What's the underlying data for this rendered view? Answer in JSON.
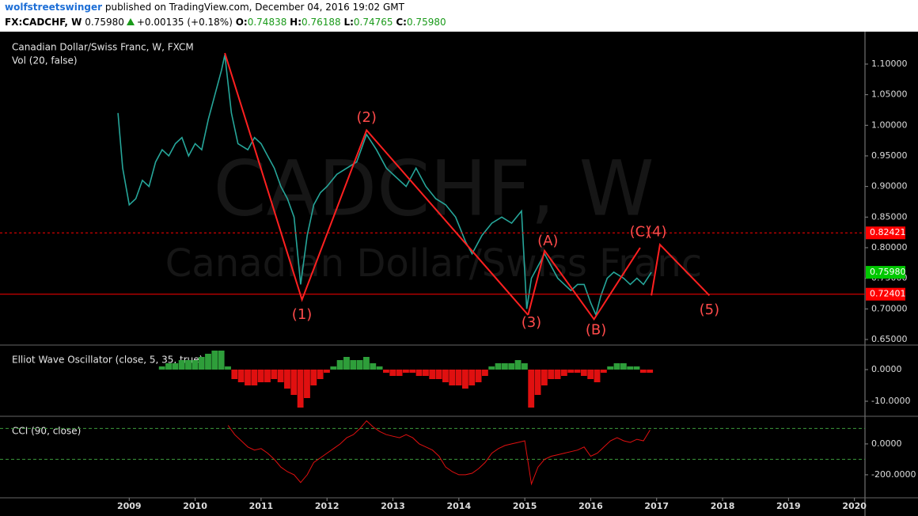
{
  "header": {
    "author": "wolfstreetswinger",
    "published": "published on TradingView.com, December 04, 2016 19:02 GMT",
    "symbol": "FX:CADCHF, W",
    "price": "0.75980",
    "change": "+0.00135 (+0.18%)",
    "ohlc": [
      {
        "label": "O:",
        "value": "0.74838"
      },
      {
        "label": "H:",
        "value": "0.76188"
      },
      {
        "label": "L:",
        "value": "0.74765"
      },
      {
        "label": "C:",
        "value": "0.75980"
      }
    ]
  },
  "chart_data": [
    {
      "type": "line",
      "title": "Canadian Dollar/Swiss Franc, W, FXCM",
      "subtitle": "Vol (20, false)",
      "watermark": [
        "CADCHF, W",
        "Canadian Dollar/Swiss Franc"
      ],
      "xlim": [
        2007.04,
        2020.16
      ],
      "ylim": [
        0.6422,
        1.1504
      ],
      "color": "#26a69a",
      "yticks": [
        {
          "value": 0.65,
          "label": "0.65000"
        },
        {
          "value": 0.7,
          "label": "0.70000"
        },
        {
          "value": 0.75,
          "label": "0.75000"
        },
        {
          "value": 0.8,
          "label": "0.80000"
        },
        {
          "value": 0.85,
          "label": "0.85000"
        },
        {
          "value": 0.9,
          "label": "0.90000"
        },
        {
          "value": 0.95,
          "label": "0.95000"
        },
        {
          "value": 1.0,
          "label": "1.00000"
        },
        {
          "value": 1.05,
          "label": "1.05000"
        },
        {
          "value": 1.1,
          "label": "1.10000"
        }
      ],
      "x": [
        2008.83,
        2008.9,
        2009.0,
        2009.1,
        2009.2,
        2009.3,
        2009.4,
        2009.5,
        2009.6,
        2009.7,
        2009.8,
        2009.9,
        2010.0,
        2010.1,
        2010.2,
        2010.3,
        2010.4,
        2010.45,
        2010.55,
        2010.65,
        2010.8,
        2010.9,
        2011.0,
        2011.1,
        2011.2,
        2011.3,
        2011.4,
        2011.5,
        2011.6,
        2011.7,
        2011.8,
        2011.9,
        2012.0,
        2012.15,
        2012.3,
        2012.45,
        2012.6,
        2012.75,
        2012.9,
        2013.0,
        2013.2,
        2013.35,
        2013.5,
        2013.65,
        2013.8,
        2013.95,
        2014.1,
        2014.2,
        2014.35,
        2014.5,
        2014.65,
        2014.8,
        2014.95,
        2015.03,
        2015.1,
        2015.2,
        2015.3,
        2015.4,
        2015.5,
        2015.6,
        2015.7,
        2015.8,
        2015.9,
        2016.0,
        2016.08,
        2016.15,
        2016.25,
        2016.35,
        2016.5,
        2016.6,
        2016.7,
        2016.8,
        2016.92
      ],
      "values": [
        1.02,
        0.93,
        0.87,
        0.88,
        0.91,
        0.9,
        0.94,
        0.96,
        0.95,
        0.97,
        0.98,
        0.95,
        0.97,
        0.96,
        1.01,
        1.05,
        1.09,
        1.115,
        1.02,
        0.97,
        0.96,
        0.98,
        0.97,
        0.95,
        0.93,
        0.9,
        0.88,
        0.85,
        0.74,
        0.82,
        0.87,
        0.89,
        0.9,
        0.92,
        0.93,
        0.94,
        0.985,
        0.96,
        0.93,
        0.92,
        0.9,
        0.93,
        0.9,
        0.88,
        0.87,
        0.85,
        0.81,
        0.79,
        0.82,
        0.84,
        0.85,
        0.84,
        0.86,
        0.7,
        0.75,
        0.77,
        0.79,
        0.77,
        0.75,
        0.74,
        0.73,
        0.74,
        0.74,
        0.71,
        0.69,
        0.72,
        0.75,
        0.76,
        0.75,
        0.74,
        0.75,
        0.74,
        0.7598
      ],
      "price_lines": [
        {
          "value": 0.72401,
          "label": "0.72401",
          "color": "#ff0000",
          "style": "solid"
        },
        {
          "value": 0.82421,
          "label": "0.82421",
          "color": "#ff0000",
          "style": "dashed"
        },
        {
          "value": 0.7598,
          "label": "0.75980",
          "color": "#00c800",
          "style": "none"
        }
      ],
      "wave_lines": [
        {
          "color": "#ff2020",
          "x": [
            2010.45,
            2011.62,
            2012.6,
            2015.05
          ],
          "values": [
            1.118,
            0.715,
            0.992,
            0.69
          ]
        },
        {
          "color": "#ff2020",
          "x": [
            2015.05,
            2015.3,
            2016.05,
            2016.75
          ],
          "values": [
            0.69,
            0.795,
            0.683,
            0.8
          ]
        },
        {
          "color": "#ff2020",
          "x": [
            2016.92,
            2017.05,
            2017.8
          ],
          "values": [
            0.722,
            0.805,
            0.722
          ]
        }
      ],
      "annotations": [
        {
          "text": "(1)",
          "x": 2011.62,
          "y": 0.69
        },
        {
          "text": "(2)",
          "x": 2012.6,
          "y": 1.012
        },
        {
          "text": "(3)",
          "x": 2015.1,
          "y": 0.677
        },
        {
          "text": "(4)",
          "x": 2017.0,
          "y": 0.825
        },
        {
          "text": "(5)",
          "x": 2017.8,
          "y": 0.698
        },
        {
          "text": "(A)",
          "x": 2015.35,
          "y": 0.81
        },
        {
          "text": "(B)",
          "x": 2016.08,
          "y": 0.665
        },
        {
          "text": "(C)",
          "x": 2016.75,
          "y": 0.825
        }
      ]
    },
    {
      "type": "bar",
      "title": "Elliot Wave Oscillator (close, 5, 35, true)",
      "xlim": [
        2007.04,
        2020.16
      ],
      "ylim": [
        -14.5,
        7.5
      ],
      "yticks": [
        {
          "value": 0,
          "label": "0.0000"
        },
        {
          "value": -10,
          "label": "-10.0000"
        }
      ],
      "positive_color": "#2e9e3a",
      "negative_color": "#e01010",
      "x": [
        2009.5,
        2009.6,
        2009.7,
        2009.8,
        2009.9,
        2010.0,
        2010.1,
        2010.2,
        2010.3,
        2010.4,
        2010.5,
        2010.6,
        2010.7,
        2010.8,
        2010.9,
        2011.0,
        2011.1,
        2011.2,
        2011.3,
        2011.4,
        2011.5,
        2011.6,
        2011.7,
        2011.8,
        2011.9,
        2012.0,
        2012.1,
        2012.2,
        2012.3,
        2012.4,
        2012.5,
        2012.6,
        2012.7,
        2012.8,
        2012.9,
        2013.0,
        2013.1,
        2013.2,
        2013.3,
        2013.4,
        2013.5,
        2013.6,
        2013.7,
        2013.8,
        2013.9,
        2014.0,
        2014.1,
        2014.2,
        2014.3,
        2014.4,
        2014.5,
        2014.6,
        2014.7,
        2014.8,
        2014.9,
        2015.0,
        2015.1,
        2015.2,
        2015.3,
        2015.4,
        2015.5,
        2015.6,
        2015.7,
        2015.8,
        2015.9,
        2016.0,
        2016.1,
        2016.2,
        2016.3,
        2016.4,
        2016.5,
        2016.6,
        2016.7,
        2016.8,
        2016.9
      ],
      "values": [
        1,
        2,
        2,
        3,
        3,
        3,
        4,
        5,
        6,
        6,
        1,
        -3,
        -4,
        -5,
        -5,
        -4,
        -4,
        -3,
        -4,
        -6,
        -8,
        -12,
        -9,
        -5,
        -3,
        -1,
        1,
        3,
        4,
        3,
        3,
        4,
        2,
        1,
        -1,
        -2,
        -2,
        -1,
        -1,
        -2,
        -2,
        -3,
        -3,
        -4,
        -5,
        -5,
        -6,
        -5,
        -4,
        -2,
        1,
        2,
        2,
        2,
        3,
        2,
        -12,
        -8,
        -5,
        -3,
        -3,
        -2,
        -1,
        -1,
        -2,
        -3,
        -4,
        -1,
        1,
        2,
        2,
        1,
        1,
        -1,
        -1
      ]
    },
    {
      "type": "line",
      "title": "CCI (90, close)",
      "xlim": [
        2007.04,
        2020.16
      ],
      "ylim": [
        -344,
        174
      ],
      "color": "#e01010",
      "yticks": [
        {
          "value": 0,
          "label": "0.0000"
        },
        {
          "value": -200,
          "label": "-200.0000"
        }
      ],
      "bands": [
        100,
        -100
      ],
      "band_color": "#3c9a3c",
      "xticks": [
        2009,
        2010,
        2011,
        2012,
        2013,
        2014,
        2015,
        2016,
        2017,
        2018,
        2019,
        2020
      ],
      "x": [
        2010.5,
        2010.6,
        2010.7,
        2010.8,
        2010.9,
        2011.0,
        2011.1,
        2011.2,
        2011.3,
        2011.4,
        2011.5,
        2011.6,
        2011.7,
        2011.8,
        2011.9,
        2012.0,
        2012.1,
        2012.2,
        2012.3,
        2012.4,
        2012.5,
        2012.6,
        2012.7,
        2012.8,
        2012.9,
        2013.0,
        2013.1,
        2013.2,
        2013.3,
        2013.4,
        2013.5,
        2013.6,
        2013.7,
        2013.8,
        2013.9,
        2014.0,
        2014.1,
        2014.2,
        2014.3,
        2014.4,
        2014.5,
        2014.6,
        2014.7,
        2014.8,
        2014.9,
        2015.0,
        2015.1,
        2015.2,
        2015.3,
        2015.4,
        2015.5,
        2015.6,
        2015.7,
        2015.8,
        2015.9,
        2016.0,
        2016.1,
        2016.2,
        2016.3,
        2016.4,
        2016.5,
        2016.6,
        2016.7,
        2016.8,
        2016.9
      ],
      "values": [
        120,
        60,
        20,
        -20,
        -40,
        -30,
        -60,
        -100,
        -150,
        -180,
        -200,
        -250,
        -200,
        -120,
        -90,
        -60,
        -30,
        0,
        40,
        60,
        100,
        150,
        110,
        80,
        60,
        50,
        40,
        60,
        40,
        0,
        -20,
        -40,
        -80,
        -150,
        -180,
        -200,
        -200,
        -190,
        -160,
        -120,
        -60,
        -30,
        -10,
        0,
        10,
        20,
        -260,
        -150,
        -100,
        -80,
        -70,
        -60,
        -50,
        -40,
        -20,
        -80,
        -60,
        -20,
        20,
        40,
        20,
        10,
        30,
        20,
        90
      ]
    }
  ]
}
